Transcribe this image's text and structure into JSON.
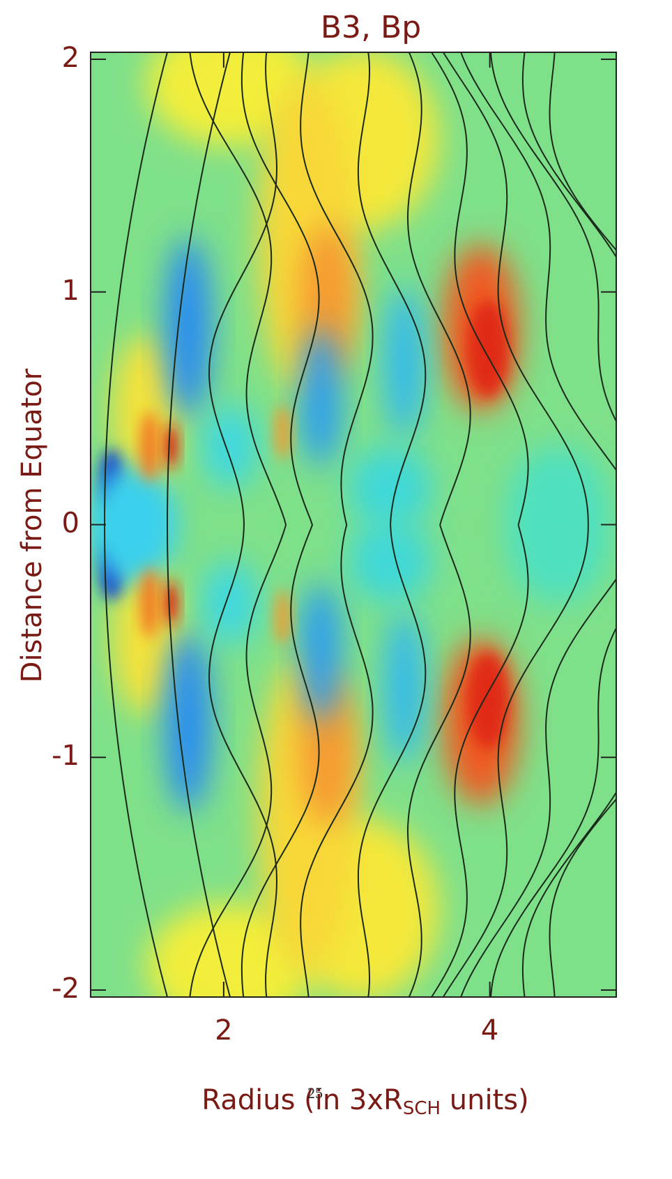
{
  "chart_data": {
    "type": "heatmap",
    "title": "B3, Bp",
    "x_label": "Radius (in 3xR",
    "x_label_sub": "SCH",
    "x_label_end": " units)",
    "y_label": "Distance from Equator",
    "xlim": [
      1,
      4.95
    ],
    "ylim": [
      -2.03,
      2.03
    ],
    "xticks": [
      2,
      4
    ],
    "yticks": [
      -2,
      -1,
      0,
      1,
      2
    ]
  },
  "page_number": "25"
}
